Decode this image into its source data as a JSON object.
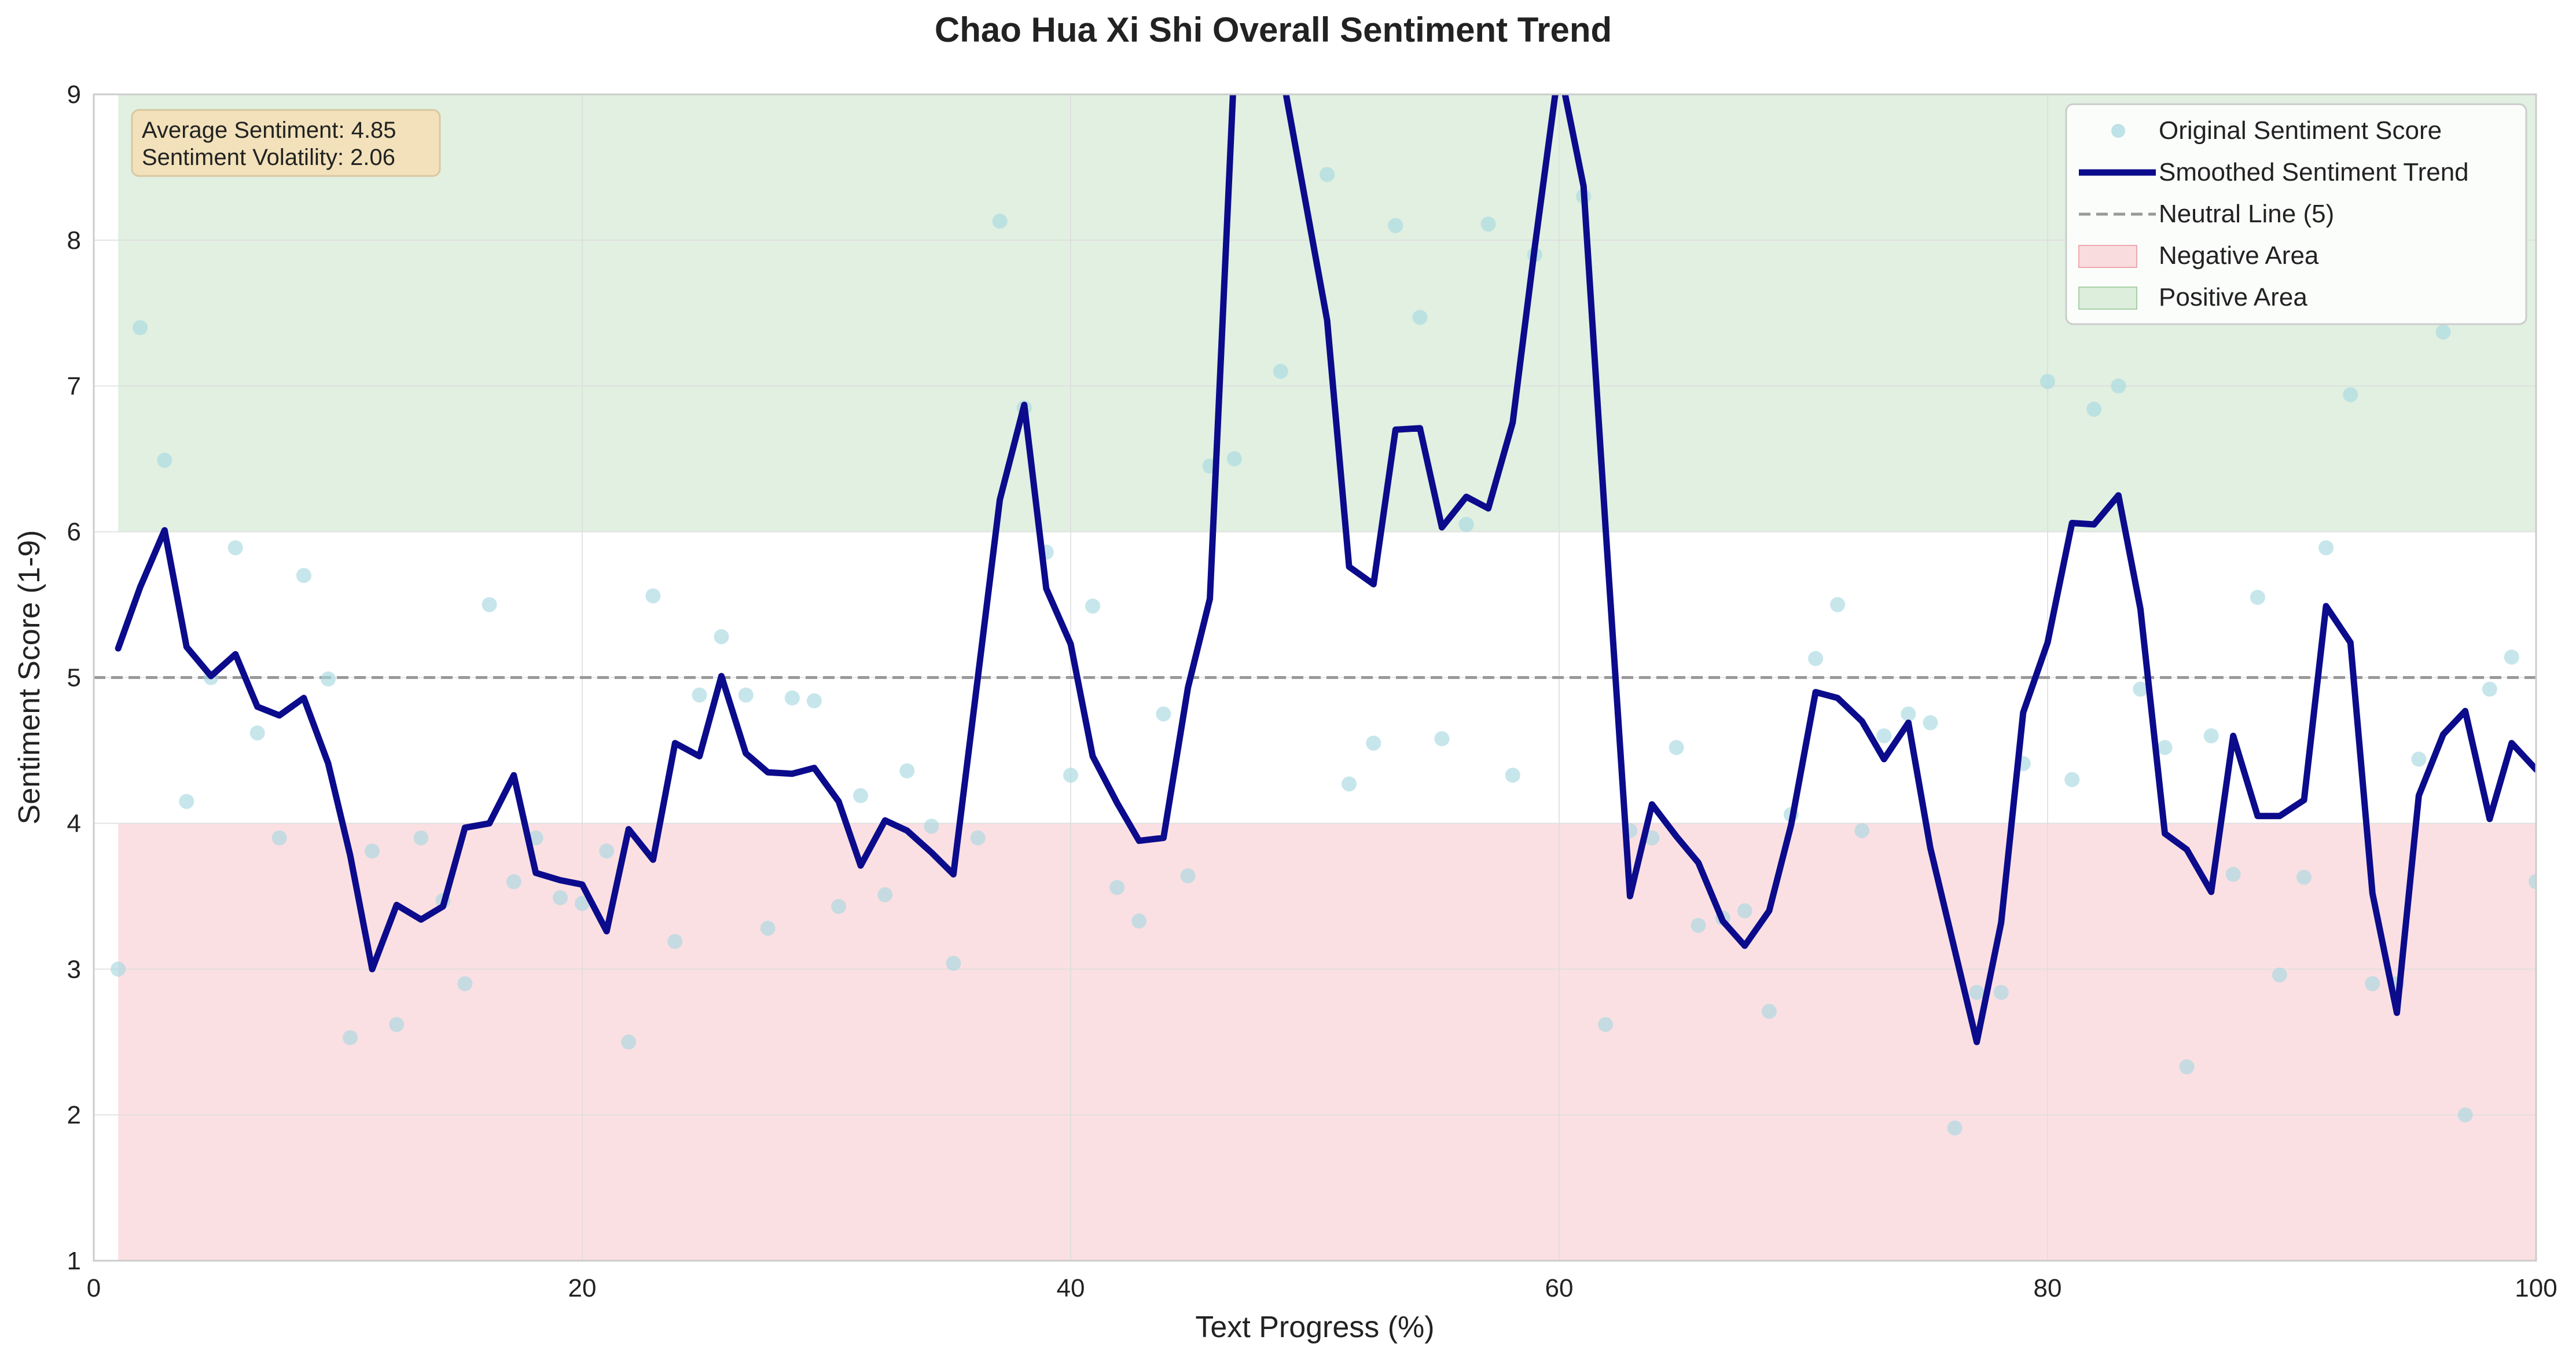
{
  "chart_data": {
    "type": "line",
    "title": "Chao Hua Xi Shi Overall Sentiment Trend",
    "xlabel": "Text Progress (%)",
    "ylabel": "Sentiment Score (1-9)",
    "xlim": [
      0,
      100
    ],
    "ylim": [
      1,
      9
    ],
    "xticks": [
      0,
      20,
      40,
      60,
      80,
      100
    ],
    "yticks": [
      1,
      2,
      3,
      4,
      5,
      6,
      7,
      8,
      9
    ],
    "grid": true,
    "legend_position": "top-right",
    "stats": [
      "Average Sentiment: 4.85",
      "Sentiment Volatility: 2.06"
    ],
    "neutral_line": 5,
    "regions": [
      {
        "name": "Negative Area",
        "y_from": 1,
        "y_to": 4,
        "x_from": 1,
        "x_to": 100,
        "color": "#f8c7cc"
      },
      {
        "name": "Positive Area",
        "y_from": 6,
        "y_to": 9,
        "x_from": 1,
        "x_to": 100,
        "color": "#c9e4c9"
      }
    ],
    "series": [
      {
        "name": "Original Sentiment Score",
        "type": "scatter",
        "color": "#a8d8e0",
        "points": [
          [
            1.0,
            3.0
          ],
          [
            1.9,
            7.4
          ],
          [
            2.9,
            6.49
          ],
          [
            3.8,
            4.15
          ],
          [
            4.8,
            5.0
          ],
          [
            5.8,
            5.89
          ],
          [
            6.7,
            4.62
          ],
          [
            7.6,
            3.9
          ],
          [
            8.6,
            5.7
          ],
          [
            9.6,
            4.99
          ],
          [
            10.5,
            2.53
          ],
          [
            11.4,
            3.81
          ],
          [
            12.4,
            2.62
          ],
          [
            13.4,
            3.9
          ],
          [
            14.3,
            3.47
          ],
          [
            15.2,
            2.9
          ],
          [
            16.2,
            5.5
          ],
          [
            17.2,
            3.6
          ],
          [
            18.1,
            3.9
          ],
          [
            19.1,
            3.49
          ],
          [
            20.0,
            3.45
          ],
          [
            21.0,
            3.81
          ],
          [
            21.9,
            2.5
          ],
          [
            22.9,
            5.56
          ],
          [
            23.8,
            3.19
          ],
          [
            24.8,
            4.88
          ],
          [
            25.7,
            5.28
          ],
          [
            26.7,
            4.88
          ],
          [
            27.6,
            3.28
          ],
          [
            28.6,
            4.86
          ],
          [
            29.5,
            4.84
          ],
          [
            30.5,
            3.43
          ],
          [
            31.4,
            4.19
          ],
          [
            32.4,
            3.51
          ],
          [
            33.3,
            4.36
          ],
          [
            34.3,
            3.98
          ],
          [
            35.2,
            3.04
          ],
          [
            36.2,
            3.9
          ],
          [
            37.1,
            8.13
          ],
          [
            38.1,
            6.85
          ],
          [
            39.0,
            5.86
          ],
          [
            40.0,
            4.33
          ],
          [
            40.9,
            5.49
          ],
          [
            41.9,
            3.56
          ],
          [
            42.8,
            3.33
          ],
          [
            43.8,
            4.75
          ],
          [
            44.8,
            3.64
          ],
          [
            45.7,
            6.45
          ],
          [
            46.7,
            6.5
          ],
          [
            47.6,
            9.2
          ],
          [
            48.6,
            7.1
          ],
          [
            49.5,
            9.2
          ],
          [
            50.5,
            8.45
          ],
          [
            51.4,
            4.27
          ],
          [
            52.4,
            4.55
          ],
          [
            53.3,
            8.1
          ],
          [
            54.3,
            7.47
          ],
          [
            55.2,
            4.58
          ],
          [
            56.2,
            6.05
          ],
          [
            57.1,
            8.11
          ],
          [
            58.1,
            4.33
          ],
          [
            59.0,
            7.9
          ],
          [
            60.0,
            9.2
          ],
          [
            61.0,
            8.3
          ],
          [
            61.9,
            2.62
          ],
          [
            62.9,
            3.95
          ],
          [
            63.8,
            3.9
          ],
          [
            64.8,
            4.52
          ],
          [
            65.7,
            3.3
          ],
          [
            66.7,
            3.35
          ],
          [
            67.6,
            3.4
          ],
          [
            68.6,
            2.71
          ],
          [
            69.5,
            4.06
          ],
          [
            70.5,
            5.13
          ],
          [
            71.4,
            5.5
          ],
          [
            72.4,
            3.95
          ],
          [
            73.3,
            4.6
          ],
          [
            74.3,
            4.75
          ],
          [
            75.2,
            4.69
          ],
          [
            76.2,
            1.91
          ],
          [
            77.1,
            2.84
          ],
          [
            78.1,
            2.84
          ],
          [
            79.0,
            4.41
          ],
          [
            80.0,
            7.03
          ],
          [
            81.0,
            4.3
          ],
          [
            81.9,
            6.84
          ],
          [
            82.9,
            7.0
          ],
          [
            83.8,
            4.92
          ],
          [
            84.8,
            4.52
          ],
          [
            85.7,
            2.33
          ],
          [
            86.7,
            4.6
          ],
          [
            87.6,
            3.65
          ],
          [
            88.6,
            5.55
          ],
          [
            89.5,
            2.96
          ],
          [
            90.5,
            3.63
          ],
          [
            91.4,
            5.89
          ],
          [
            92.4,
            6.94
          ],
          [
            93.3,
            2.9
          ],
          [
            94.3,
            2.9
          ],
          [
            95.2,
            4.44
          ],
          [
            96.2,
            7.37
          ],
          [
            97.1,
            2.0
          ],
          [
            98.1,
            4.92
          ],
          [
            99.0,
            5.14
          ],
          [
            100.0,
            3.6
          ]
        ]
      },
      {
        "name": "Smoothed Sentiment Trend",
        "type": "line",
        "color": "#0b0b8c",
        "points": [
          [
            1.0,
            5.2
          ],
          [
            1.9,
            5.62
          ],
          [
            2.9,
            6.01
          ],
          [
            3.8,
            5.21
          ],
          [
            4.8,
            5.01
          ],
          [
            5.8,
            5.16
          ],
          [
            6.7,
            4.8
          ],
          [
            7.6,
            4.74
          ],
          [
            8.6,
            4.86
          ],
          [
            9.6,
            4.41
          ],
          [
            10.5,
            3.78
          ],
          [
            11.4,
            3.0
          ],
          [
            12.4,
            3.44
          ],
          [
            13.4,
            3.34
          ],
          [
            14.3,
            3.43
          ],
          [
            15.2,
            3.97
          ],
          [
            16.2,
            4.0
          ],
          [
            17.2,
            4.33
          ],
          [
            18.1,
            3.66
          ],
          [
            19.1,
            3.61
          ],
          [
            20.0,
            3.58
          ],
          [
            21.0,
            3.26
          ],
          [
            21.9,
            3.96
          ],
          [
            22.9,
            3.75
          ],
          [
            23.8,
            4.55
          ],
          [
            24.8,
            4.46
          ],
          [
            25.7,
            5.01
          ],
          [
            26.7,
            4.48
          ],
          [
            27.6,
            4.35
          ],
          [
            28.6,
            4.34
          ],
          [
            29.5,
            4.38
          ],
          [
            30.5,
            4.15
          ],
          [
            31.4,
            3.71
          ],
          [
            32.4,
            4.02
          ],
          [
            33.3,
            3.95
          ],
          [
            34.3,
            3.8
          ],
          [
            35.2,
            3.65
          ],
          [
            36.2,
            5.0
          ],
          [
            37.1,
            6.22
          ],
          [
            38.1,
            6.87
          ],
          [
            39.0,
            5.61
          ],
          [
            40.0,
            5.23
          ],
          [
            40.9,
            4.46
          ],
          [
            41.9,
            4.14
          ],
          [
            42.8,
            3.88
          ],
          [
            43.8,
            3.9
          ],
          [
            44.8,
            4.93
          ],
          [
            45.7,
            5.54
          ],
          [
            46.7,
            9.2
          ],
          [
            47.6,
            9.2
          ],
          [
            48.6,
            9.2
          ],
          [
            49.5,
            8.37
          ],
          [
            50.5,
            7.45
          ],
          [
            51.4,
            5.76
          ],
          [
            52.4,
            5.64
          ],
          [
            53.3,
            6.7
          ],
          [
            54.3,
            6.71
          ],
          [
            55.2,
            6.03
          ],
          [
            56.2,
            6.24
          ],
          [
            57.1,
            6.16
          ],
          [
            58.1,
            6.75
          ],
          [
            59.0,
            7.95
          ],
          [
            60.0,
            9.2
          ],
          [
            61.0,
            8.37
          ],
          [
            61.9,
            6.03
          ],
          [
            62.9,
            3.5
          ],
          [
            63.8,
            4.13
          ],
          [
            64.8,
            3.91
          ],
          [
            65.7,
            3.73
          ],
          [
            66.7,
            3.33
          ],
          [
            67.6,
            3.16
          ],
          [
            68.6,
            3.4
          ],
          [
            69.5,
            3.99
          ],
          [
            70.5,
            4.9
          ],
          [
            71.4,
            4.86
          ],
          [
            72.4,
            4.7
          ],
          [
            73.3,
            4.44
          ],
          [
            74.3,
            4.69
          ],
          [
            75.2,
            3.83
          ],
          [
            76.2,
            3.13
          ],
          [
            77.1,
            2.5
          ],
          [
            78.1,
            3.32
          ],
          [
            79.0,
            4.76
          ],
          [
            80.0,
            5.24
          ],
          [
            81.0,
            6.06
          ],
          [
            81.9,
            6.05
          ],
          [
            82.9,
            6.25
          ],
          [
            83.8,
            5.47
          ],
          [
            84.8,
            3.93
          ],
          [
            85.7,
            3.82
          ],
          [
            86.7,
            3.53
          ],
          [
            87.6,
            4.6
          ],
          [
            88.6,
            4.05
          ],
          [
            89.5,
            4.05
          ],
          [
            90.5,
            4.16
          ],
          [
            91.4,
            5.49
          ],
          [
            92.4,
            5.24
          ],
          [
            93.3,
            3.52
          ],
          [
            94.3,
            2.7
          ],
          [
            95.2,
            4.19
          ],
          [
            96.2,
            4.61
          ],
          [
            97.1,
            4.77
          ],
          [
            98.1,
            4.03
          ],
          [
            99.0,
            4.55
          ],
          [
            100.0,
            4.37
          ]
        ]
      },
      {
        "name": "Neutral Line (5)",
        "type": "hline",
        "y": 5,
        "color": "#999999"
      },
      {
        "name": "Negative Area",
        "type": "region",
        "color": "#f8c7cc"
      },
      {
        "name": "Positive Area",
        "type": "region",
        "color": "#c9e4c9"
      }
    ]
  }
}
